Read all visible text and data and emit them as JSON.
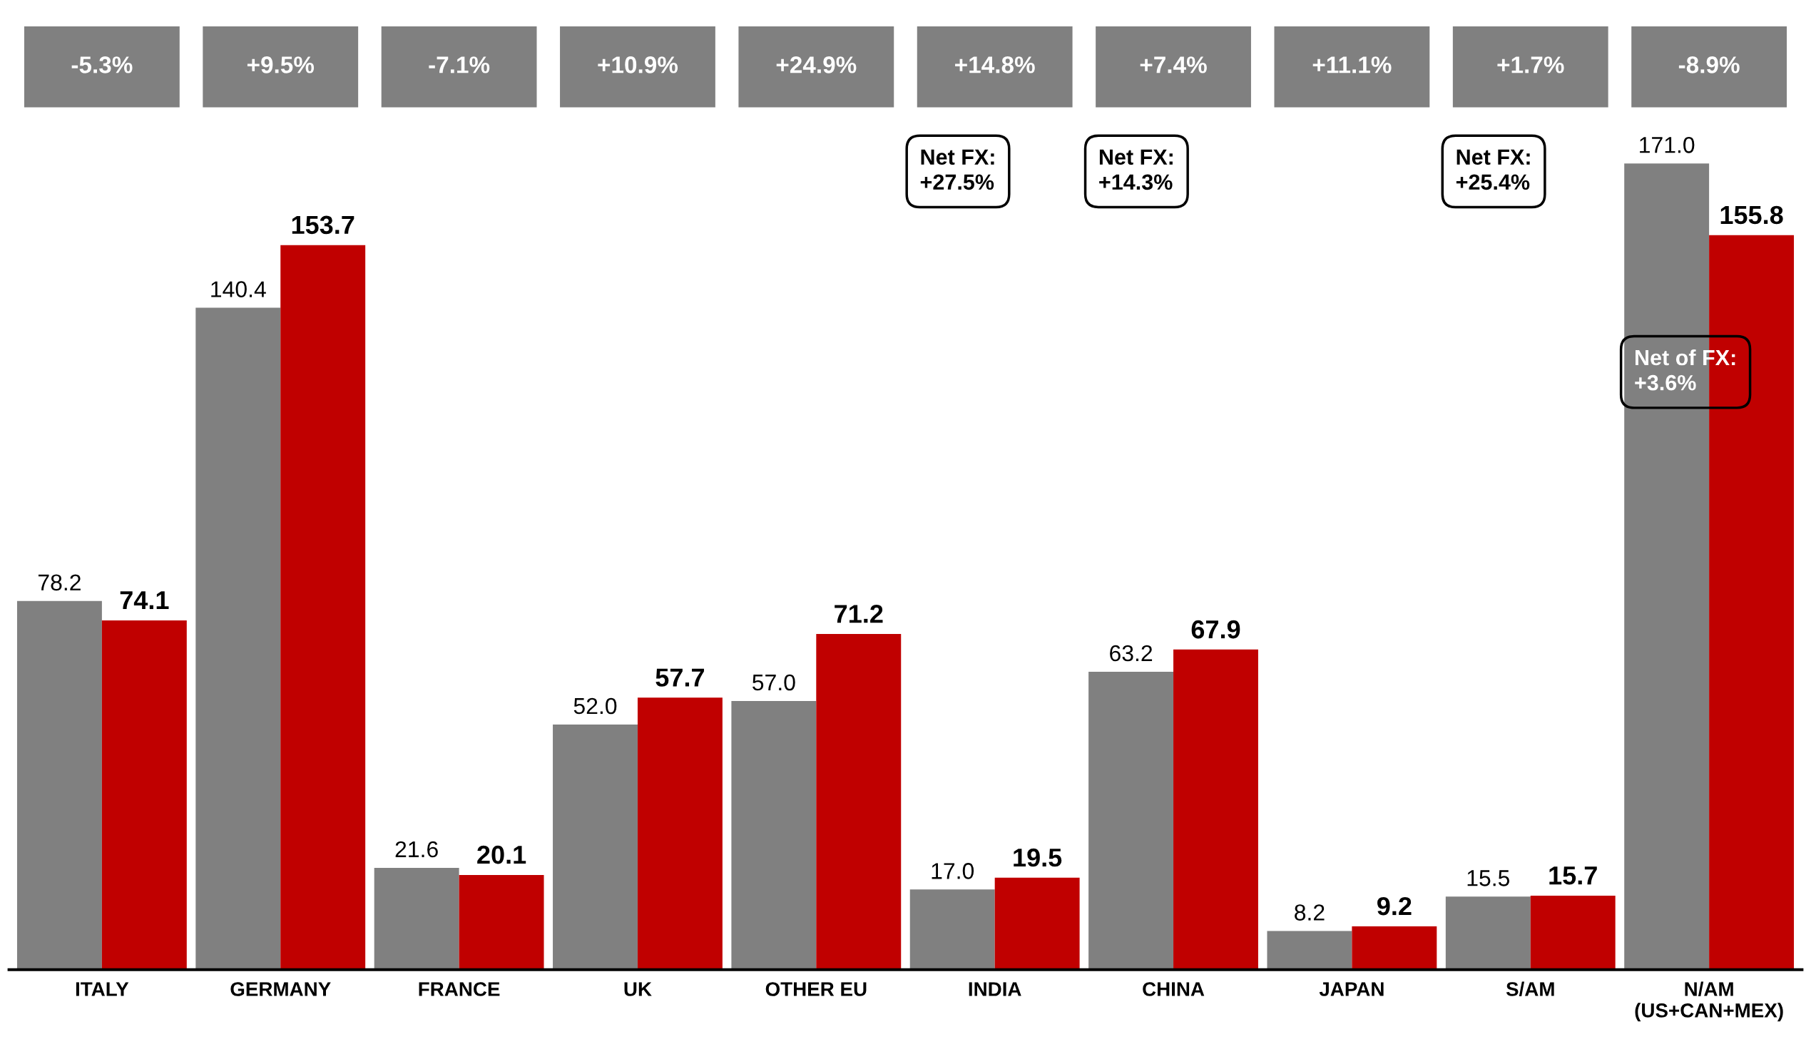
{
  "chart_data": {
    "type": "bar",
    "categories": [
      "ITALY",
      "GERMANY",
      "FRANCE",
      "UK",
      "OTHER EU",
      "INDIA",
      "CHINA",
      "JAPAN",
      "S/AM",
      "N/AM\n(US+CAN+MEX)"
    ],
    "series": [
      {
        "color": "#808080",
        "values": [
          78.2,
          140.4,
          21.6,
          52.0,
          57.0,
          17.0,
          63.2,
          8.2,
          15.5,
          171.0
        ],
        "value_labels": [
          "78.2",
          "140.4",
          "21.6",
          "52.0",
          "57.0",
          "17.0",
          "63.2",
          "8.2",
          "15.5",
          "171.0"
        ]
      },
      {
        "color": "#c00000",
        "values": [
          74.1,
          153.7,
          20.1,
          57.7,
          71.2,
          19.5,
          67.9,
          9.2,
          15.7,
          155.8
        ],
        "value_labels": [
          "74.1",
          "153.7",
          "20.1",
          "57.7",
          "71.2",
          "19.5",
          "67.9",
          "9.2",
          "15.7",
          "155.8"
        ]
      }
    ],
    "grid": false,
    "legend": false,
    "annotations": [
      "-5.3%",
      "+9.5%",
      "-7.1%",
      "+10.9%",
      "+24.9%",
      "+14.8%",
      "+7.4%",
      "+11.1%",
      "+1.7%",
      "-8.9%",
      "Net FX:\n+27.5%",
      "Net FX:\n+14.3%",
      "Net FX:\n+25.4%",
      "Net of FX:\n+3.6%"
    ]
  }
}
